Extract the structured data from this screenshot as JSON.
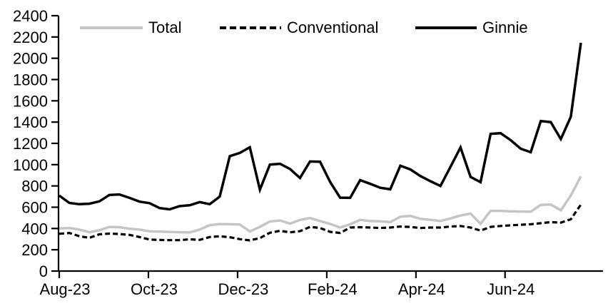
{
  "chart_data": {
    "type": "line",
    "title": "",
    "xlabel": "",
    "ylabel": "",
    "grid": false,
    "legend_position": "top-horizontal",
    "background_color": "#ffffff",
    "axis_color": "#000000",
    "y_axis": {
      "min": 0,
      "max": 2400,
      "step": 200,
      "tick_labels": [
        "0",
        "200",
        "400",
        "600",
        "800",
        "1000",
        "1200",
        "1400",
        "1600",
        "1800",
        "2000",
        "2200",
        "2400"
      ]
    },
    "x_axis": {
      "tick_labels": [
        "Aug-23",
        "Oct-23",
        "Dec-23",
        "Feb-24",
        "Apr-24",
        "Jun-24"
      ],
      "tick_data_positions": [
        0,
        8.89,
        17.78,
        26.67,
        35.56,
        44.44
      ],
      "frequency": "weekly",
      "num_points": 53
    },
    "series": [
      {
        "name": "Total",
        "color": "#c5c5c5",
        "style": "solid",
        "values": [
          400,
          405,
          390,
          365,
          383,
          415,
          412,
          398,
          390,
          374,
          370,
          368,
          365,
          363,
          390,
          432,
          442,
          440,
          438,
          372,
          415,
          465,
          476,
          446,
          480,
          499,
          470,
          443,
          409,
          440,
          481,
          470,
          467,
          460,
          510,
          518,
          491,
          481,
          470,
          495,
          522,
          540,
          444,
          566,
          566,
          562,
          559,
          558,
          622,
          625,
          571,
          710,
          890
        ]
      },
      {
        "name": "Conventional",
        "color": "#000000",
        "style": "dashed",
        "values": [
          350,
          358,
          328,
          312,
          345,
          352,
          348,
          340,
          320,
          296,
          292,
          290,
          290,
          298,
          293,
          320,
          327,
          318,
          300,
          288,
          310,
          360,
          378,
          364,
          375,
          415,
          405,
          369,
          358,
          409,
          412,
          409,
          405,
          409,
          418,
          414,
          405,
          409,
          409,
          418,
          424,
          409,
          380,
          415,
          424,
          430,
          435,
          440,
          450,
          460,
          455,
          487,
          625
        ]
      },
      {
        "name": "Ginnie",
        "color": "#000000",
        "style": "solid",
        "values": [
          710,
          640,
          628,
          633,
          655,
          715,
          720,
          688,
          652,
          638,
          592,
          580,
          610,
          618,
          648,
          628,
          700,
          1080,
          1110,
          1163,
          765,
          1000,
          1008,
          960,
          875,
          1030,
          1028,
          838,
          690,
          688,
          855,
          820,
          783,
          768,
          990,
          955,
          893,
          845,
          800,
          980,
          1162,
          885,
          835,
          1290,
          1296,
          1230,
          1150,
          1117,
          1410,
          1400,
          1240,
          1450,
          2145
        ]
      }
    ]
  }
}
